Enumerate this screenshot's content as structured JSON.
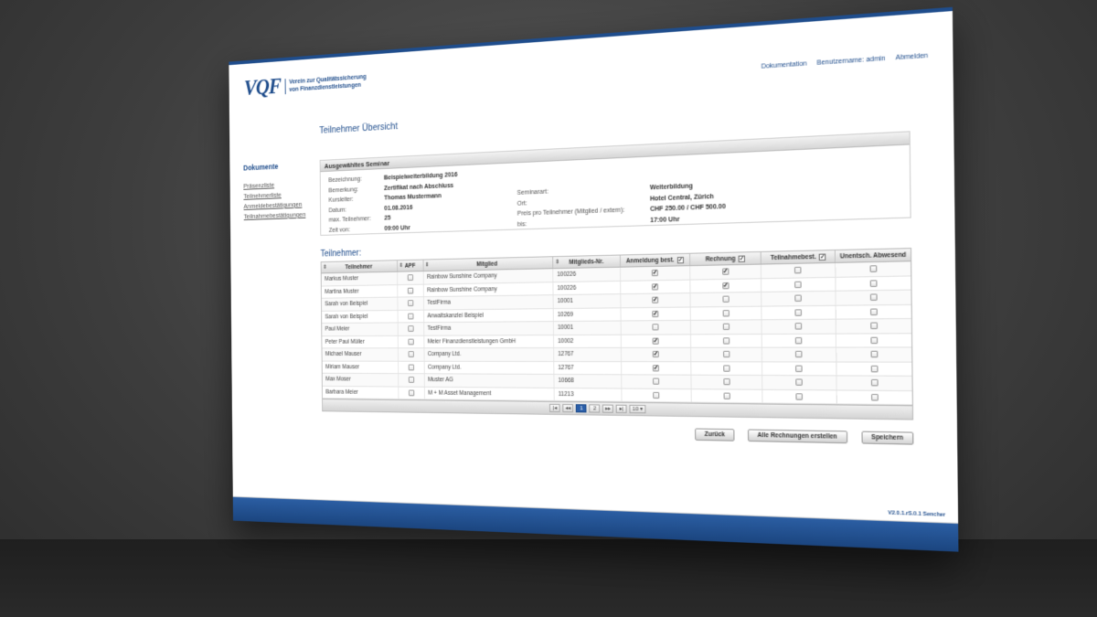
{
  "logo": {
    "mark": "VQF",
    "line1": "Verein zur Qualitätssicherung",
    "line2": "von Finanzdienstleistungen"
  },
  "topnav": {
    "docs": "Dokumentation",
    "user": "Benutzername: admin",
    "logout": "Abmelden"
  },
  "page_title": "Teilnehmer Übersicht",
  "sidebar": {
    "title": "Dokumente",
    "items": [
      "Präsenzliste",
      "Teilnehmerliste",
      "Anmeldebestätigungen",
      "Teilnahmebestätigungen"
    ]
  },
  "seminar": {
    "header": "Ausgewähltes Seminar",
    "rows": [
      {
        "l1": "Bezeichnung:",
        "v1": "Beispielweiterbildung 2016",
        "l2": "",
        "v2": ""
      },
      {
        "l1": "Bemerkung:",
        "v1": "Zertifikat nach Abschluss",
        "l2": "",
        "v2": ""
      },
      {
        "l1": "Kursleiter:",
        "v1": "Thomas Mustermann",
        "l2": "Seminarart:",
        "v2": "Weiterbildung"
      },
      {
        "l1": "Datum:",
        "v1": "01.08.2016",
        "l2": "Ort:",
        "v2": "Hotel Central, Zürich"
      },
      {
        "l1": "max. Teilnehmer:",
        "v1": "25",
        "l2": "Preis pro Teilnehmer (Mitglied / extern):",
        "v2": "CHF 250.00 / CHF 500.00"
      },
      {
        "l1": "Zeit von:",
        "v1": "09:00 Uhr",
        "l2": "bis:",
        "v2": "17:00 Uhr"
      }
    ]
  },
  "participants_title": "Teilnehmer:",
  "grid": {
    "columns": [
      "Teilnehmer",
      "APF",
      "Mitglied",
      "Mitglieds-Nr.",
      "Anmeldung best.",
      "Rechnung",
      "Teilnahmebest.",
      "Unentsch. Abwesend"
    ],
    "rows": [
      {
        "name": "Markus Muster",
        "apf": false,
        "member": "Rainbow Sunshine Company",
        "nr": "100226",
        "anmeldung": true,
        "rechnung": true,
        "teilnahme": false,
        "abwesend": false
      },
      {
        "name": "Martina Muster",
        "apf": false,
        "member": "Rainbow Sunshine Company",
        "nr": "100226",
        "anmeldung": true,
        "rechnung": true,
        "teilnahme": false,
        "abwesend": false
      },
      {
        "name": "Sarah von Beispiel",
        "apf": false,
        "member": "TestFirma",
        "nr": "10001",
        "anmeldung": true,
        "rechnung": false,
        "teilnahme": false,
        "abwesend": false
      },
      {
        "name": "Sarah von Beispiel",
        "apf": false,
        "member": "Anwaltskanzlei Beispiel",
        "nr": "10269",
        "anmeldung": true,
        "rechnung": false,
        "teilnahme": false,
        "abwesend": false
      },
      {
        "name": "Paul Meier",
        "apf": false,
        "member": "TestFirma",
        "nr": "10001",
        "anmeldung": false,
        "rechnung": false,
        "teilnahme": false,
        "abwesend": false
      },
      {
        "name": "Peter Paul Müller",
        "apf": false,
        "member": "Meier Finanzdienstleistungen GmbH",
        "nr": "10002",
        "anmeldung": true,
        "rechnung": false,
        "teilnahme": false,
        "abwesend": false
      },
      {
        "name": "Michael Mauser",
        "apf": false,
        "member": "Company Ltd.",
        "nr": "12767",
        "anmeldung": true,
        "rechnung": false,
        "teilnahme": false,
        "abwesend": false
      },
      {
        "name": "Miriam Mauser",
        "apf": false,
        "member": "Company Ltd.",
        "nr": "12767",
        "anmeldung": true,
        "rechnung": false,
        "teilnahme": false,
        "abwesend": false
      },
      {
        "name": "Max Moser",
        "apf": false,
        "member": "Muster AG",
        "nr": "10668",
        "anmeldung": false,
        "rechnung": false,
        "teilnahme": false,
        "abwesend": false
      },
      {
        "name": "Barbara Meier",
        "apf": false,
        "member": "M + M Asset Management",
        "nr": "11213",
        "anmeldung": false,
        "rechnung": false,
        "teilnahme": false,
        "abwesend": false
      }
    ]
  },
  "pager": {
    "first": "|◂",
    "prev": "◂◂",
    "pages": [
      "1",
      "2"
    ],
    "next": "▸▸",
    "last": "▸|",
    "page_size": "10 ▾"
  },
  "buttons": {
    "back": "Zurück",
    "create_invoices": "Alle Rechnungen erstellen",
    "save": "Speichern"
  },
  "version": "V2.0.1.rS.0.1 Sencher"
}
